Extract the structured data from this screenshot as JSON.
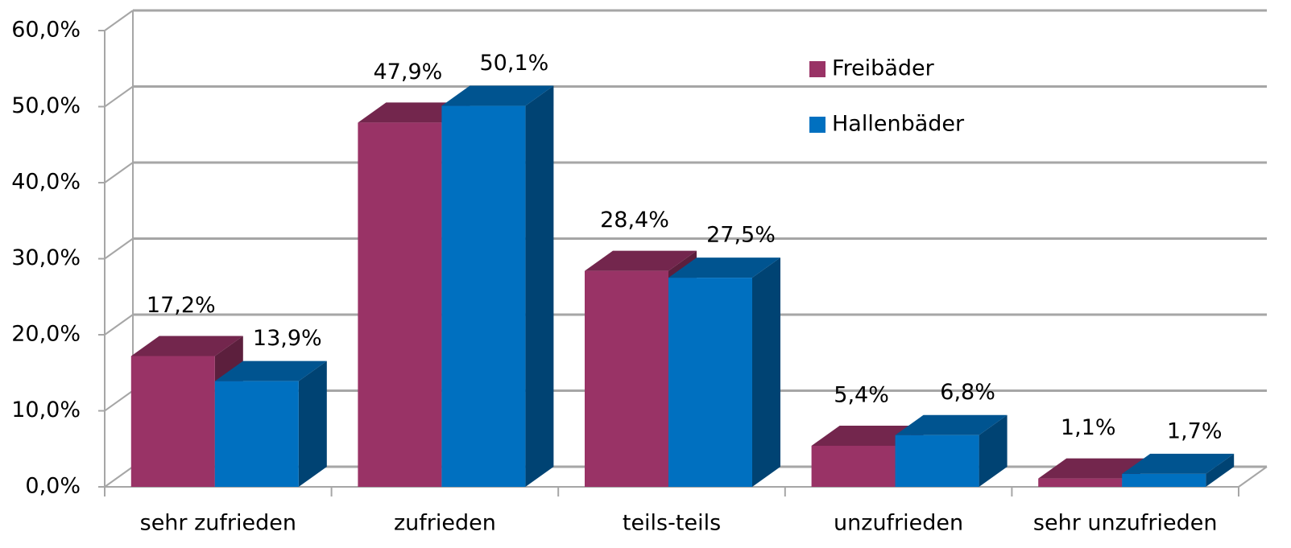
{
  "chart_data": {
    "type": "bar3d",
    "categories": [
      "sehr zufrieden",
      "zufrieden",
      "teils-teils",
      "unzufrieden",
      "sehr unzufrieden"
    ],
    "series": [
      {
        "name": "Freibäder",
        "color": "#993366",
        "values": [
          17.2,
          47.9,
          28.4,
          5.4,
          1.1
        ],
        "value_labels": [
          "17,2%",
          "47,9%",
          "28,4%",
          "5,4%",
          "1,1%"
        ]
      },
      {
        "name": "Hallenbäder",
        "color": "#0070c0",
        "values": [
          13.9,
          50.1,
          27.5,
          6.8,
          1.7
        ],
        "value_labels": [
          "13,9%",
          "50,1%",
          "27,5%",
          "6,8%",
          "1,7%"
        ]
      }
    ],
    "ylim": [
      0,
      60
    ],
    "yticks": [
      {
        "value": 0,
        "label": "0,0%"
      },
      {
        "value": 10,
        "label": "10,0%"
      },
      {
        "value": 20,
        "label": "20,0%"
      },
      {
        "value": 30,
        "label": "30,0%"
      },
      {
        "value": 40,
        "label": "40,0%"
      },
      {
        "value": 50,
        "label": "50,0%"
      },
      {
        "value": 60,
        "label": "60,0%"
      }
    ],
    "grid": true,
    "legend": "upper-right"
  }
}
